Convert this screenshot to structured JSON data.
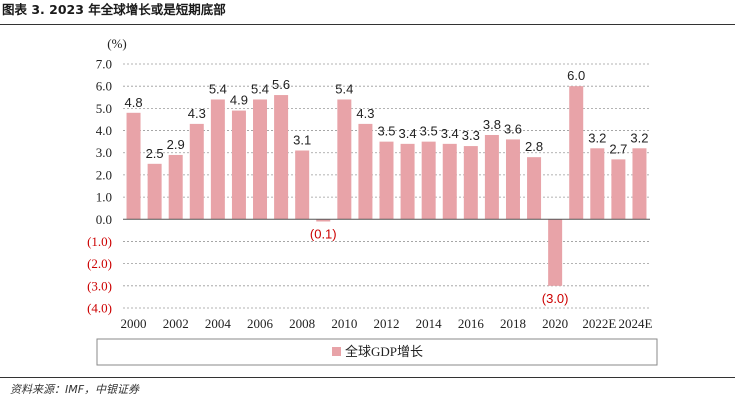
{
  "figure": {
    "title": "图表 3. 2023 年全球增长或是短期底部",
    "source": "资料来源：IMF，中银证券"
  },
  "colors": {
    "bar": "#e8a3a8",
    "negative_label": "#cc0000",
    "text": "#222222",
    "grid": "#9a9a9a"
  },
  "chart_data": {
    "type": "bar",
    "unit_label": "(%)",
    "categories": [
      "2000",
      "2001",
      "2002",
      "2003",
      "2004",
      "2005",
      "2006",
      "2007",
      "2008",
      "2009",
      "2010",
      "2011",
      "2012",
      "2013",
      "2014",
      "2015",
      "2016",
      "2017",
      "2018",
      "2019",
      "2020",
      "2021",
      "2022E",
      "2023E",
      "2024E"
    ],
    "series": [
      {
        "name": "全球GDP增长",
        "values": [
          4.8,
          2.5,
          2.9,
          4.3,
          5.4,
          4.9,
          5.4,
          5.6,
          3.1,
          -0.1,
          5.4,
          4.3,
          3.5,
          3.4,
          3.5,
          3.4,
          3.3,
          3.8,
          3.6,
          2.8,
          -3.0,
          6.0,
          3.2,
          2.7,
          3.2
        ],
        "labels": [
          "4.8",
          "2.5",
          "2.9",
          "4.3",
          "5.4",
          "4.9",
          "5.4",
          "5.6",
          "3.1",
          "(0.1)",
          "5.4",
          "4.3",
          "3.5",
          "3.4",
          "3.5",
          "3.4",
          "3.3",
          "3.8",
          "3.6",
          "2.8",
          "(3.0)",
          "6.0",
          "3.2",
          "2.7",
          "3.2"
        ]
      }
    ],
    "x_tick_labels": [
      "2000",
      "2002",
      "2004",
      "2006",
      "2008",
      "2010",
      "2012",
      "2014",
      "2016",
      "2018",
      "2020",
      "2022E",
      "2024E"
    ],
    "y_ticks": [
      7.0,
      6.0,
      5.0,
      4.0,
      3.0,
      2.0,
      1.0,
      0.0,
      -1.0,
      -2.0,
      -3.0,
      -4.0
    ],
    "y_tick_labels": [
      "7.0",
      "6.0",
      "5.0",
      "4.0",
      "3.0",
      "2.0",
      "1.0",
      "0.0",
      "(1.0)",
      "(2.0)",
      "(3.0)",
      "(4.0)"
    ],
    "ylim": [
      -4.0,
      7.0
    ],
    "grid": "horizontal dashed",
    "legend_position": "bottom"
  }
}
